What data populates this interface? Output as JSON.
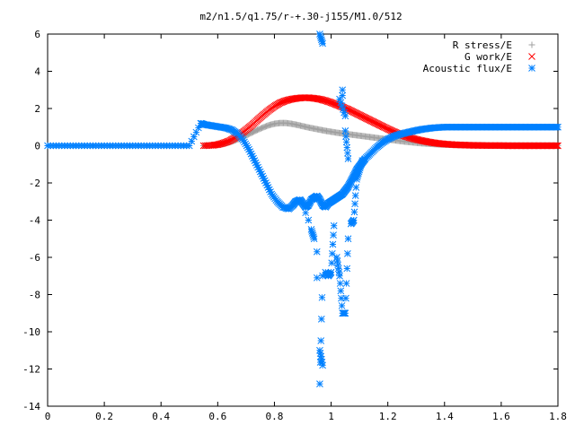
{
  "chart_data": {
    "type": "scatter",
    "title": "m2/n1.5/q1.75/r-+.30-j155/M1.0/512",
    "xlabel": "",
    "ylabel": "",
    "xlim": [
      0,
      1.8
    ],
    "ylim": [
      -14,
      6
    ],
    "x_ticks": [
      "0",
      "0.2",
      "0.4",
      "0.6",
      "0.8",
      "1",
      "1.2",
      "1.4",
      "1.6",
      "1.8"
    ],
    "y_ticks": [
      "6",
      "4",
      "2",
      "0",
      "-2",
      "-4",
      "-6",
      "-8",
      "-10",
      "-12",
      "-14"
    ],
    "grid": false,
    "legend_position": "top-right",
    "series": [
      {
        "name": "R stress/E",
        "marker": "plus",
        "color": "#a0a0a0",
        "x": [
          0.55,
          0.58,
          0.6,
          0.62,
          0.64,
          0.66,
          0.68,
          0.7,
          0.72,
          0.74,
          0.76,
          0.78,
          0.8,
          0.82,
          0.84,
          0.86,
          0.88,
          0.9,
          0.92,
          0.94,
          0.96,
          0.98,
          1.0,
          1.02,
          1.04,
          1.06,
          1.08,
          1.1,
          1.12,
          1.14,
          1.16,
          1.18,
          1.2,
          1.22,
          1.24,
          1.26,
          1.28,
          1.3,
          1.32,
          1.34,
          1.36,
          1.38,
          1.4,
          1.42,
          1.44,
          1.46,
          1.48,
          1.5,
          1.52,
          1.54,
          1.56,
          1.58,
          1.6,
          1.62,
          1.64,
          1.66,
          1.68,
          1.7,
          1.72,
          1.74,
          1.76,
          1.78,
          1.8
        ],
        "y": [
          0.0,
          0.02,
          0.05,
          0.1,
          0.18,
          0.28,
          0.4,
          0.55,
          0.7,
          0.85,
          0.98,
          1.1,
          1.18,
          1.22,
          1.22,
          1.18,
          1.12,
          1.05,
          0.98,
          0.92,
          0.86,
          0.8,
          0.75,
          0.7,
          0.66,
          0.62,
          0.58,
          0.54,
          0.5,
          0.46,
          0.42,
          0.38,
          0.34,
          0.3,
          0.26,
          0.22,
          0.19,
          0.16,
          0.13,
          0.11,
          0.09,
          0.07,
          0.06,
          0.05,
          0.04,
          0.03,
          0.03,
          0.02,
          0.02,
          0.02,
          0.01,
          0.01,
          0.01,
          0.01,
          0.01,
          0.01,
          0.01,
          0.01,
          0.01,
          0.01,
          0.01,
          0.01,
          0.01
        ]
      },
      {
        "name": "G work/E",
        "marker": "cross",
        "color": "#ff0000",
        "x": [
          0.55,
          0.58,
          0.6,
          0.62,
          0.64,
          0.66,
          0.68,
          0.7,
          0.72,
          0.74,
          0.76,
          0.78,
          0.8,
          0.82,
          0.84,
          0.86,
          0.88,
          0.9,
          0.92,
          0.94,
          0.96,
          0.98,
          1.0,
          1.02,
          1.04,
          1.06,
          1.08,
          1.1,
          1.12,
          1.14,
          1.16,
          1.18,
          1.2,
          1.22,
          1.24,
          1.26,
          1.28,
          1.3,
          1.32,
          1.34,
          1.36,
          1.38,
          1.4,
          1.42,
          1.44,
          1.46,
          1.48,
          1.5,
          1.52,
          1.54,
          1.56,
          1.58,
          1.6,
          1.62,
          1.64,
          1.66,
          1.68,
          1.7,
          1.72,
          1.74,
          1.76,
          1.78,
          1.8
        ],
        "y": [
          0.0,
          0.02,
          0.06,
          0.14,
          0.25,
          0.42,
          0.62,
          0.85,
          1.1,
          1.38,
          1.65,
          1.9,
          2.12,
          2.3,
          2.42,
          2.5,
          2.55,
          2.58,
          2.58,
          2.55,
          2.5,
          2.42,
          2.32,
          2.2,
          2.08,
          1.95,
          1.8,
          1.65,
          1.5,
          1.35,
          1.2,
          1.05,
          0.9,
          0.76,
          0.63,
          0.52,
          0.42,
          0.34,
          0.27,
          0.21,
          0.16,
          0.12,
          0.09,
          0.07,
          0.05,
          0.04,
          0.03,
          0.02,
          0.02,
          0.01,
          0.01,
          0.01,
          0.01,
          0.0,
          0.0,
          0.0,
          0.0,
          0.0,
          0.0,
          0.0,
          0.0,
          0.0,
          0.0
        ]
      },
      {
        "name": "Acoustic flux/E",
        "marker": "star",
        "color": "#0080ff",
        "x": [
          0.0,
          0.05,
          0.1,
          0.15,
          0.2,
          0.25,
          0.3,
          0.35,
          0.4,
          0.45,
          0.5,
          0.54,
          0.55,
          0.57,
          0.59,
          0.61,
          0.63,
          0.65,
          0.67,
          0.69,
          0.71,
          0.73,
          0.75,
          0.77,
          0.79,
          0.81,
          0.83,
          0.85,
          0.865,
          0.875,
          0.89,
          0.9,
          0.91,
          0.92,
          0.93,
          0.94,
          0.95,
          0.96,
          0.97,
          0.98,
          0.99,
          1.0,
          1.01,
          1.02,
          1.03,
          1.04,
          1.05,
          1.06,
          1.07,
          1.08,
          1.09,
          1.1,
          1.11,
          1.12,
          1.14,
          1.16,
          1.18,
          1.2,
          1.22,
          1.24,
          1.26,
          1.28,
          1.3,
          1.32,
          1.34,
          1.36,
          1.38,
          1.4,
          1.42,
          1.44,
          1.46,
          1.48,
          1.5,
          1.52,
          1.54,
          1.56,
          1.58,
          1.6,
          1.62,
          1.64,
          1.66,
          1.68,
          1.7,
          1.72,
          1.74,
          1.76,
          1.78,
          1.8,
          0.96,
          0.97,
          0.96,
          0.97,
          0.96,
          0.97,
          0.95,
          0.95,
          1.04,
          1.04,
          1.03,
          1.05,
          1.05,
          1.06,
          1.02,
          1.03,
          1.04,
          1.05,
          1.06,
          0.93,
          0.94,
          0.92,
          0.91,
          0.98,
          0.99,
          1.0,
          1.01,
          1.07,
          1.08,
          1.09,
          1.1,
          1.11
        ],
        "y": [
          0.0,
          0.0,
          0.0,
          0.0,
          0.0,
          0.0,
          0.0,
          0.0,
          0.0,
          0.0,
          0.0,
          1.2,
          1.15,
          1.1,
          1.05,
          1.0,
          0.95,
          0.85,
          0.65,
          0.3,
          -0.2,
          -0.8,
          -1.4,
          -2.0,
          -2.6,
          -3.0,
          -3.3,
          -3.4,
          -3.2,
          -3.0,
          -2.9,
          -3.1,
          -3.3,
          -3.2,
          -2.9,
          -2.8,
          -2.7,
          -2.9,
          -3.2,
          -3.3,
          -3.1,
          -3.0,
          -2.9,
          -2.8,
          -2.7,
          -2.6,
          -2.4,
          -2.2,
          -1.9,
          -1.6,
          -1.3,
          -1.1,
          -0.9,
          -0.7,
          -0.4,
          -0.1,
          0.15,
          0.35,
          0.5,
          0.6,
          0.68,
          0.75,
          0.82,
          0.88,
          0.92,
          0.96,
          0.98,
          1.0,
          1.0,
          1.0,
          1.0,
          1.0,
          1.0,
          1.0,
          1.0,
          1.0,
          1.0,
          1.0,
          1.0,
          1.0,
          1.0,
          1.0,
          1.0,
          1.0,
          1.0,
          1.0,
          1.0,
          1.0,
          6.0,
          5.5,
          -11.0,
          -11.8,
          -12.8,
          -7.0,
          -7.1,
          -5.7,
          3.0,
          2.7,
          2.5,
          1.6,
          0.8,
          -0.7,
          -6.0,
          -7.0,
          -9.0,
          -9.0,
          -5.0,
          -4.5,
          -5.0,
          -4.0,
          -3.6,
          -6.8,
          -7.0,
          -6.8,
          -4.3,
          -4.2,
          -4.0,
          -1.8,
          -1.3,
          -0.8
        ]
      }
    ]
  }
}
